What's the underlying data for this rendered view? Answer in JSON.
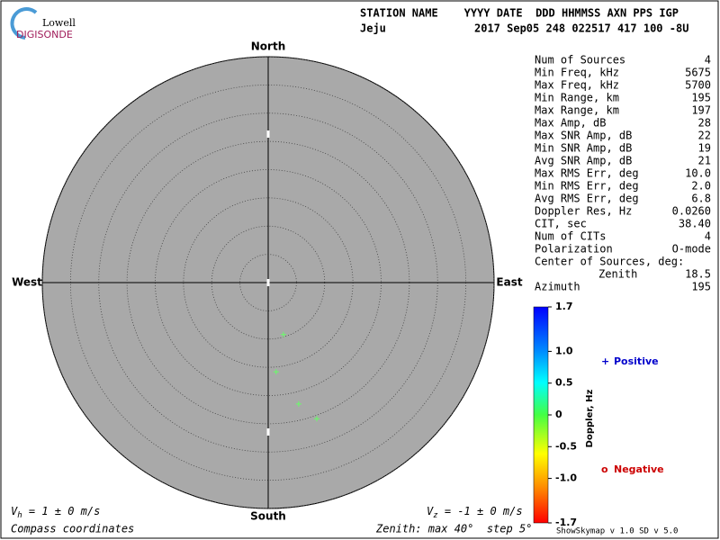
{
  "logo": {
    "top": "Lowell",
    "bottom": "DIGISONDE"
  },
  "header": {
    "columns": "STATION NAME    YYYY DATE  DDD HHMMSS AXN PPS IGP",
    "station": "Jeju",
    "record": "2017 Sep05 248 022517 417 100 -8U"
  },
  "stats": [
    [
      "Num of Sources",
      "4"
    ],
    [
      "Min Freq, kHz",
      "5675"
    ],
    [
      "Max Freq, kHz",
      "5700"
    ],
    [
      "Min Range, km",
      "195"
    ],
    [
      "Max Range, km",
      "197"
    ],
    [
      "Max Amp, dB",
      "28"
    ],
    [
      "Max SNR Amp, dB",
      "22"
    ],
    [
      "Min SNR Amp, dB",
      "19"
    ],
    [
      "Avg SNR Amp, dB",
      "21"
    ],
    [
      "Max RMS Err, deg",
      "10.0"
    ],
    [
      "Min RMS Err, deg",
      "2.0"
    ],
    [
      "Avg RMS Err, deg",
      "6.8"
    ],
    [
      "Doppler Res, Hz",
      "0.0260"
    ],
    [
      "CIT, sec",
      "38.40"
    ],
    [
      "Num of CITs",
      "4"
    ],
    [
      "Polarization",
      "O-mode"
    ],
    [
      "Center of Sources, deg:"
    ],
    [
      "Zenith",
      "18.5"
    ],
    [
      "Azimuth",
      "195"
    ]
  ],
  "chart_data": {
    "type": "skymap",
    "directions": {
      "north": "North",
      "south": "South",
      "west": "West",
      "east": "East"
    },
    "xlim": [
      -40,
      40
    ],
    "ylim": [
      -40,
      40
    ],
    "rings": [
      5,
      10,
      15,
      20,
      25,
      30,
      35,
      40
    ],
    "x": [
      2.7,
      1.4,
      5.4,
      8.6
    ],
    "values": [
      -9.2,
      -15.8,
      -21.5,
      -24.1
    ],
    "color": "#66ff66",
    "colorbar": {
      "title": "Doppler, Hz",
      "lim": [
        -1.7,
        1.7
      ],
      "ticks": [
        1.7,
        {
          "value": 1,
          "label": "1.0"
        },
        0.5,
        0,
        -0.5,
        {
          "value": -1,
          "label": "-1.0"
        },
        -1.7
      ]
    },
    "legend": [
      {
        "marker": "+",
        "label": "Positive",
        "color": "#0000cc"
      },
      {
        "marker": "o",
        "label": "Negative",
        "color": "#cc0000"
      }
    ]
  },
  "footer": {
    "vh": {
      "symbol": "V",
      "subscript": "h",
      "text": " = 1 ± 0 m/s"
    },
    "vz": {
      "symbol": "V",
      "subscript": "z",
      "text": " = -1 ± 0 m/s"
    },
    "coords": "Compass coordinates",
    "zenith": "Zenith: max 40°  step 5°",
    "version": "ShowSkymap v 1.0   SD v 5.0"
  }
}
